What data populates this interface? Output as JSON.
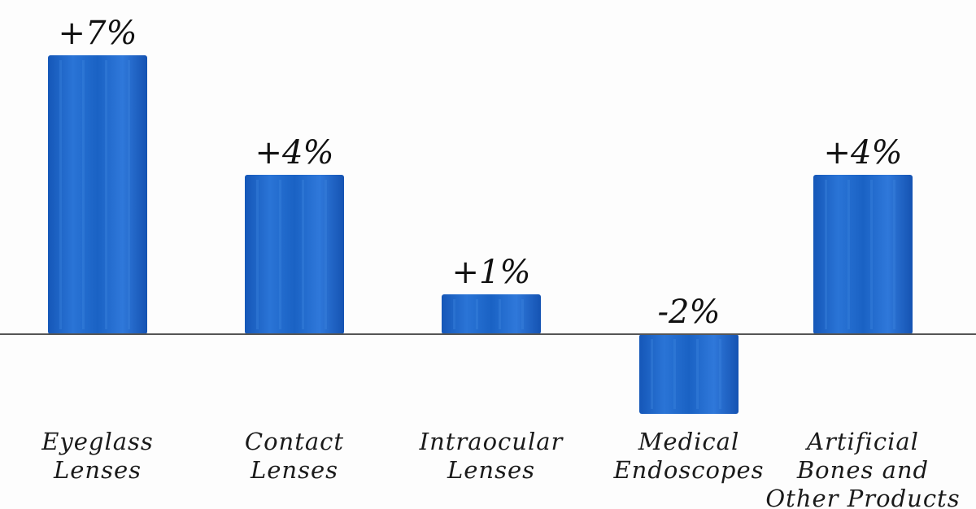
{
  "chart_data": {
    "type": "bar",
    "categories": [
      [
        "Eyeglass",
        "Lenses"
      ],
      [
        "Contact",
        "Lenses"
      ],
      [
        "Intraocular",
        "Lenses"
      ],
      [
        "Medical",
        "Endoscopes"
      ],
      [
        "Artificial",
        "Bones and",
        "Other Products"
      ]
    ],
    "values": [
      7,
      4,
      1,
      -2,
      4
    ],
    "value_labels": [
      "+7%",
      "+4%",
      "+1%",
      "-2%",
      "+4%"
    ],
    "ylim": [
      -2,
      7
    ],
    "grid": false,
    "colors": {
      "bar": "#1a62c4",
      "bar_highlight": "#3f86e0",
      "baseline": "#555555",
      "text": "#111111"
    }
  }
}
